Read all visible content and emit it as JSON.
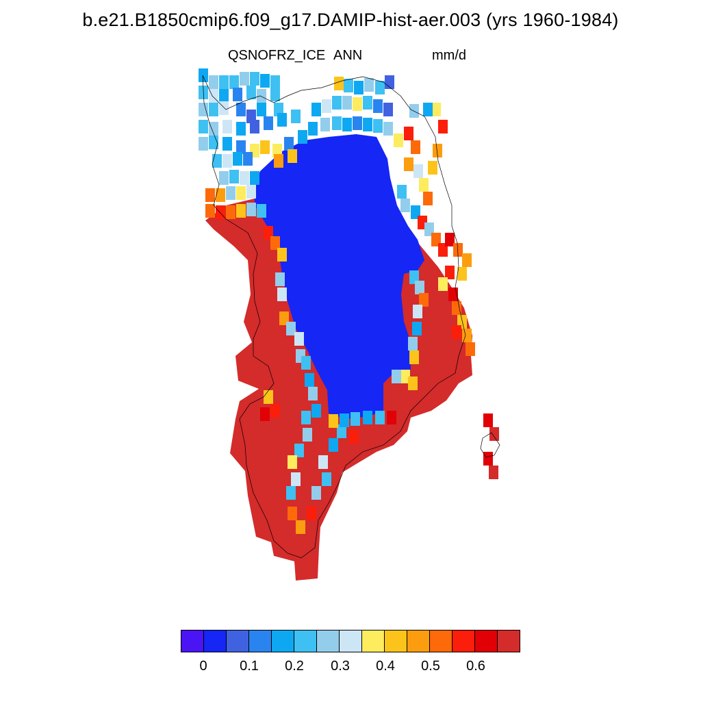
{
  "header": {
    "title": "b.e21.B1850cmip6.f09_g17.DAMIP-hist-aer.003 (yrs 1960-1984)",
    "variable": "QSNOFRZ_ICE",
    "season": "ANN",
    "units": "mm/d"
  },
  "colorbar": {
    "colors": [
      "#4b14f5",
      "#1526f5",
      "#4062e0",
      "#2a84ef",
      "#0ea8f2",
      "#3fc0f2",
      "#93cdec",
      "#cde6f6",
      "#fcec5e",
      "#fcc41b",
      "#fc9d0f",
      "#fc6a0a",
      "#fb1e0b",
      "#e10006",
      "#d42b2b"
    ],
    "labels": [
      "0",
      "0.1",
      "0.2",
      "0.3",
      "0.4",
      "0.5",
      "0.6"
    ]
  },
  "map": {
    "region": "Greenland",
    "interior_value_class": "below 0",
    "margin_value_class": "above 0.65",
    "coastline_color": "#000000"
  }
}
